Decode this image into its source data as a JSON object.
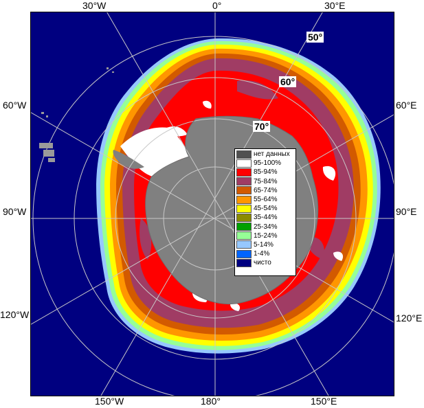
{
  "top_labels": [
    "30°W",
    "0°",
    "30°E"
  ],
  "left_labels": [
    "60°W",
    "90°W",
    "120°W"
  ],
  "right_labels": [
    "60°E",
    "90°E",
    "120°E"
  ],
  "bottom_labels": [
    "150°W",
    "180°",
    "150°E"
  ],
  "lat_labels": [
    "50°",
    "60°",
    "70°"
  ],
  "legend": [
    {
      "label": "нет данных",
      "color": "#505050"
    },
    {
      "label": "95-100%",
      "color": "#ffffff"
    },
    {
      "label": "85-94%",
      "color": "#ff0000"
    },
    {
      "label": "75-84%",
      "color": "#a03c64"
    },
    {
      "label": "65-74%",
      "color": "#d25a00"
    },
    {
      "label": "55-64%",
      "color": "#ff9600"
    },
    {
      "label": "45-54%",
      "color": "#ffff00"
    },
    {
      "label": "35-44%",
      "color": "#8c8c00"
    },
    {
      "label": "25-34%",
      "color": "#00a000"
    },
    {
      "label": "15-24%",
      "color": "#96ff96"
    },
    {
      "label": "5-14%",
      "color": "#96c8ff"
    },
    {
      "label": "1-4%",
      "color": "#0064ff"
    },
    {
      "label": "чисто",
      "color": "#000080"
    }
  ]
}
